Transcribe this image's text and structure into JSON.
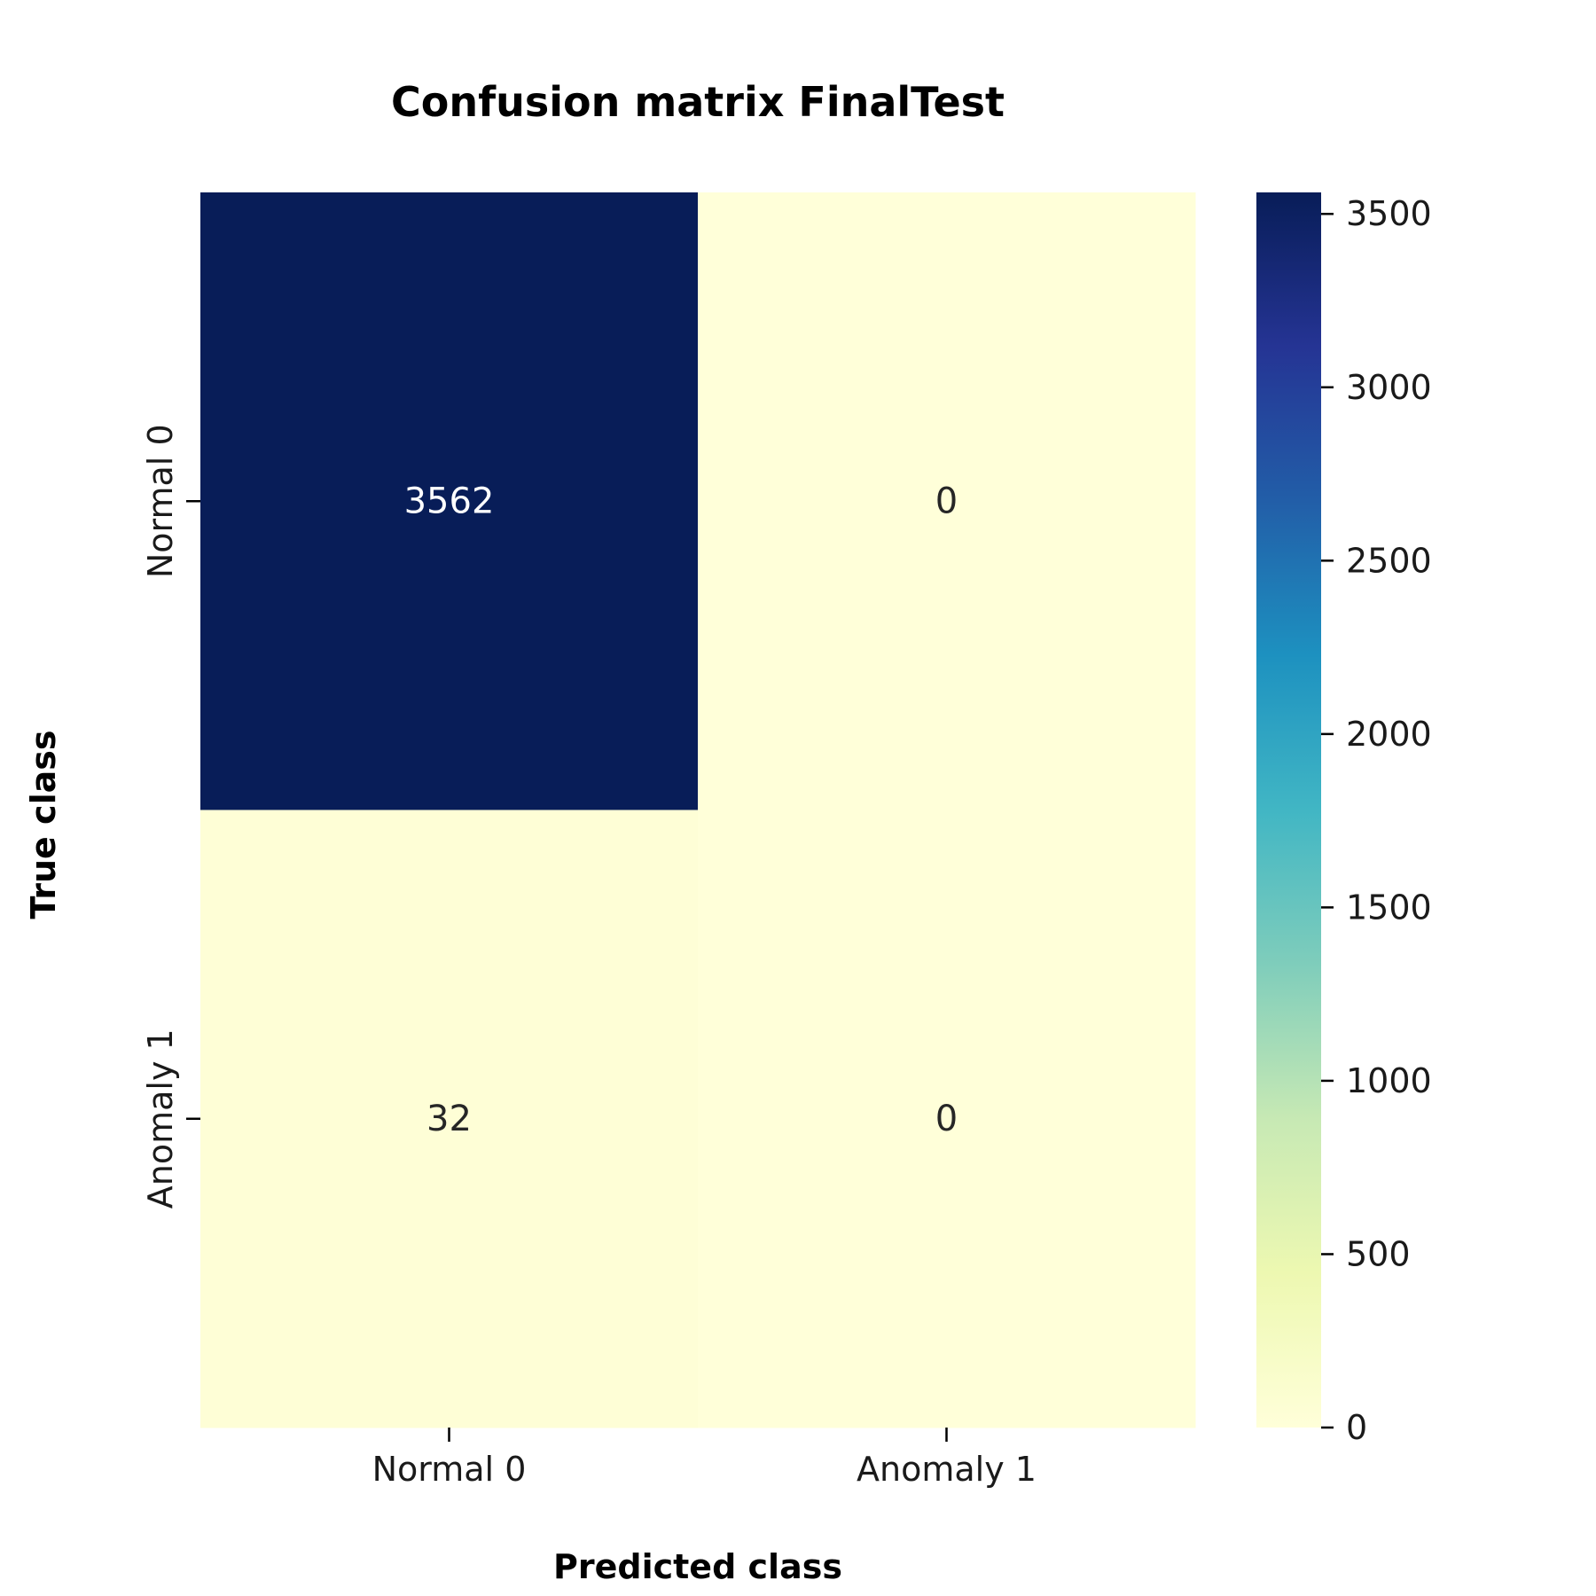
{
  "chart_data": {
    "type": "heatmap",
    "title": "Confusion matrix FinalTest",
    "xlabel": "Predicted class",
    "ylabel": "True class",
    "x_categories": [
      "Normal 0",
      "Anomaly 1"
    ],
    "y_categories": [
      "Normal 0",
      "Anomaly 1"
    ],
    "values": [
      [
        3562,
        0
      ],
      [
        32,
        0
      ]
    ],
    "colormap": "YlGnBu",
    "color_range": [
      0,
      3562
    ],
    "colorbar_ticks": [
      0,
      500,
      1000,
      1500,
      2000,
      2500,
      3000,
      3500
    ],
    "colorbar_tick_labels": [
      "0",
      "500",
      "1000",
      "1500",
      "2000",
      "2500",
      "3000",
      "3500"
    ]
  }
}
